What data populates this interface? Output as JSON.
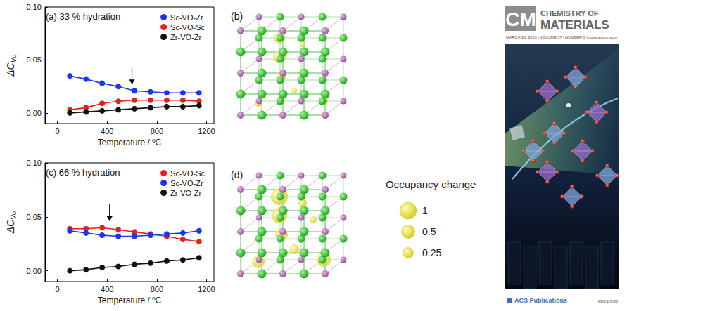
{
  "chart_data": [
    {
      "type": "line",
      "title": "(a) 33 % hydration",
      "xlabel": "Temperature / ºC",
      "ylabel": [
        "ΔC",
        "V",
        "O"
      ],
      "x": [
        100,
        230,
        360,
        490,
        620,
        750,
        880,
        1010,
        1140
      ],
      "series": [
        {
          "name": "Sc-VO-Zr",
          "color": "#1a35f0",
          "marker": "circle",
          "line_style": "solid",
          "values": [
            0.035,
            0.032,
            0.028,
            0.025,
            0.021,
            0.02,
            0.019,
            0.019,
            0.019
          ]
        },
        {
          "name": "Sc-VO-Sc",
          "color": "#e8201c",
          "marker": "circle",
          "line_style": "solid",
          "values": [
            0.003,
            0.005,
            0.009,
            0.011,
            0.012,
            0.012,
            0.012,
            0.012,
            0.011
          ]
        },
        {
          "name": "Zr-VO-Zr",
          "color": "#111111",
          "marker": "circle",
          "line_style": "solid",
          "values": [
            0.0,
            0.001,
            0.002,
            0.003,
            0.004,
            0.005,
            0.006,
            0.006,
            0.007
          ]
        }
      ],
      "xlim": [
        -100,
        1260
      ],
      "xticks": [
        0,
        400,
        800,
        1200
      ],
      "ylim": [
        -0.01,
        0.1
      ],
      "yticks": [
        {
          "value": 0,
          "label": "0.00"
        },
        {
          "value": 0.05,
          "label": "0.05"
        },
        {
          "value": 0.1,
          "label": "0.10"
        }
      ],
      "grid": false,
      "legend": "upper right",
      "arrow": {
        "x": 600,
        "y": 0.027
      }
    },
    {
      "type": "line",
      "title": "(c) 66 % hydration",
      "xlabel": "Temperature / ºC",
      "ylabel": [
        "ΔC",
        "V",
        "O"
      ],
      "x": [
        100,
        230,
        360,
        490,
        620,
        750,
        880,
        1010,
        1140
      ],
      "series": [
        {
          "name": "Sc-VO-Sc",
          "color": "#e8201c",
          "marker": "circle",
          "line_style": "solid",
          "values": [
            0.039,
            0.039,
            0.04,
            0.038,
            0.036,
            0.034,
            0.032,
            0.029,
            0.027
          ]
        },
        {
          "name": "Sc-VO-Zr",
          "color": "#1a35f0",
          "marker": "circle",
          "line_style": "solid",
          "values": [
            0.037,
            0.035,
            0.033,
            0.032,
            0.032,
            0.033,
            0.034,
            0.035,
            0.037
          ]
        },
        {
          "name": "Zr-VO-Zr",
          "color": "#111111",
          "marker": "circle",
          "line_style": "solid",
          "values": [
            0.0,
            0.001,
            0.003,
            0.004,
            0.006,
            0.007,
            0.009,
            0.01,
            0.012
          ]
        }
      ],
      "xlim": [
        -100,
        1260
      ],
      "xticks": [
        0,
        400,
        800,
        1200
      ],
      "ylim": [
        -0.01,
        0.1
      ],
      "yticks": [
        {
          "value": 0,
          "label": "0.00"
        },
        {
          "value": 0.05,
          "label": "0.05"
        },
        {
          "value": 0.1,
          "label": "0.10"
        }
      ],
      "grid": false,
      "legend": "upper right",
      "arrow": {
        "x": 420,
        "y": 0.046
      }
    }
  ],
  "structures": [
    {
      "label": "(b)"
    },
    {
      "label": "(d)"
    }
  ],
  "occupancy_legend": {
    "title": "Occupancy change",
    "sizes": [
      1,
      0.5,
      0.25
    ]
  },
  "cover": {
    "logo": "CM",
    "journal": [
      "CHEMISTRY OF",
      "MATERIALS"
    ],
    "issue": "MARCH 28, 2023 | VOLUME 37 | NUMBER 6 | pubs.acs.org/cm",
    "publisher": "ACS Publications",
    "site": "www.acs.org"
  }
}
